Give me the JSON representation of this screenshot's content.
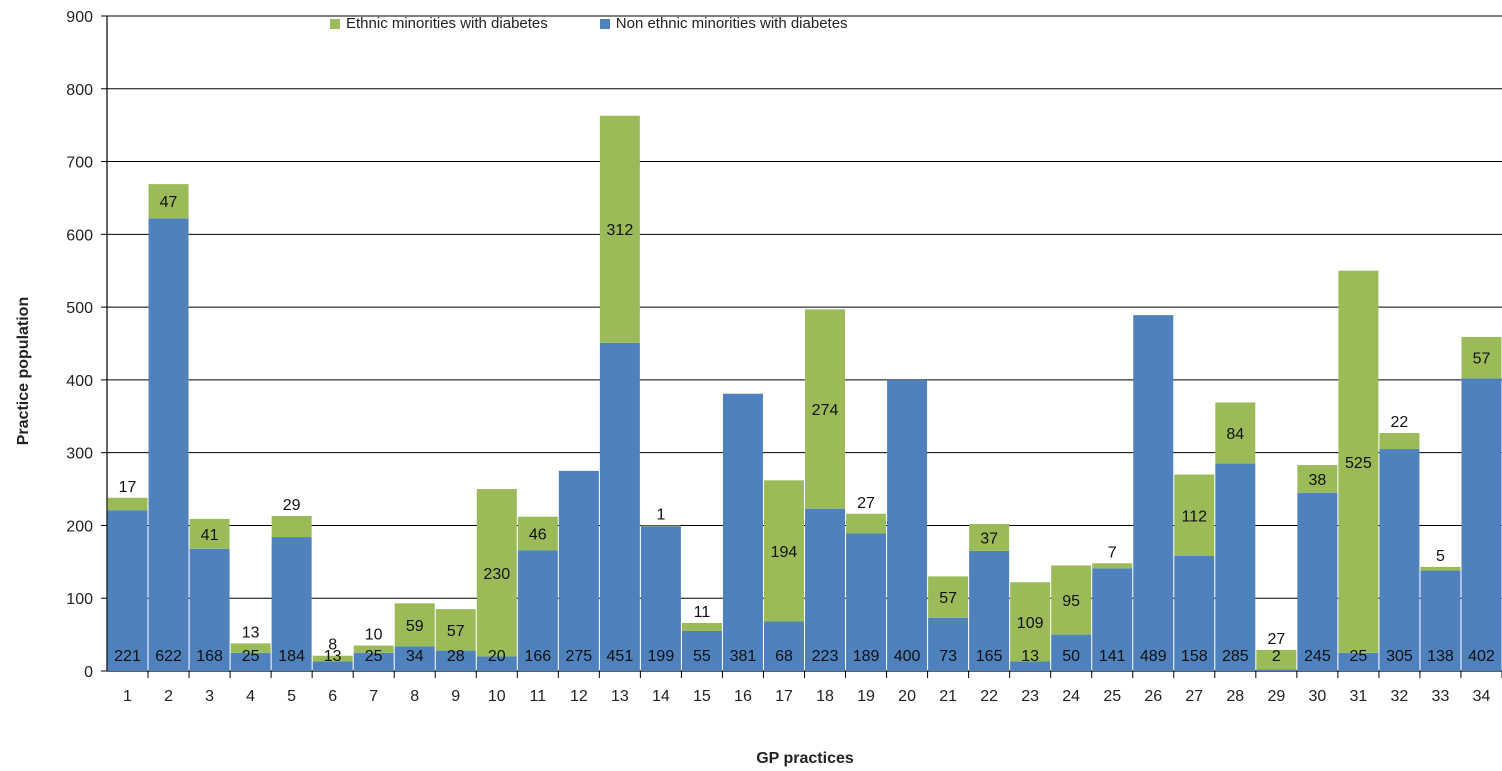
{
  "chart_data": {
    "type": "bar",
    "stacked": true,
    "title": "",
    "xlabel": "GP practices",
    "ylabel": "Practice population",
    "ylim": [
      0,
      900
    ],
    "yticks": [
      0,
      100,
      200,
      300,
      400,
      500,
      600,
      700,
      800,
      900
    ],
    "grid": true,
    "legend_position": "top",
    "categories": [
      "1",
      "2",
      "3",
      "4",
      "5",
      "6",
      "7",
      "8",
      "9",
      "10",
      "11",
      "12",
      "13",
      "14",
      "15",
      "16",
      "17",
      "18",
      "19",
      "20",
      "21",
      "22",
      "23",
      "24",
      "25",
      "26",
      "27",
      "28",
      "29",
      "30",
      "31",
      "32",
      "33",
      "34"
    ],
    "series": [
      {
        "name": "Non ethnic minorities with diabetes",
        "color": "#4f81bd",
        "values": [
          221,
          622,
          168,
          25,
          184,
          13,
          25,
          34,
          28,
          20,
          166,
          275,
          451,
          199,
          55,
          381,
          68,
          223,
          189,
          400,
          73,
          165,
          13,
          50,
          141,
          489,
          158,
          285,
          2,
          245,
          25,
          305,
          138,
          402
        ]
      },
      {
        "name": "Ethnic minorities with diabetes",
        "color": "#9bbb59",
        "values": [
          17,
          47,
          41,
          13,
          29,
          8,
          10,
          59,
          57,
          230,
          46,
          0,
          312,
          1,
          11,
          0,
          194,
          274,
          27,
          0,
          57,
          37,
          109,
          95,
          7,
          0,
          112,
          84,
          27,
          38,
          525,
          22,
          5,
          57
        ]
      }
    ],
    "legend": [
      "Ethnic minorities with diabetes",
      "Non ethnic minorities with diabetes"
    ]
  }
}
